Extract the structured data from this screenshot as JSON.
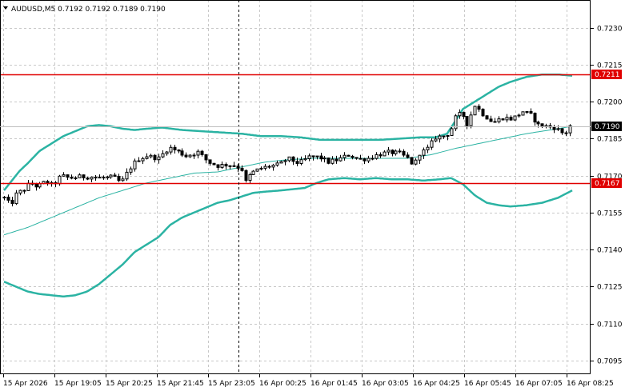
{
  "header": {
    "title": "AUDUSD,M5  0.7192 0.7192 0.7189 0.7190",
    "menu_icon": "triangle-down-icon"
  },
  "colors": {
    "background": "#ffffff",
    "grid": "#c8c8c8",
    "candle": "#000000",
    "bands": "#2bb3a3",
    "ma": "#2bb3a3",
    "level_line": "#e00000",
    "level_badge": "#e00000",
    "price_badge": "#000000"
  },
  "chart_data": {
    "type": "candlestick",
    "symbol": "AUDUSD",
    "timeframe": "M5",
    "ohlc_header": {
      "open": 0.7192,
      "high": 0.7192,
      "low": 0.7189,
      "close": 0.719
    },
    "current_price": 0.719,
    "current_price_label": "0.7190",
    "ylim": [
      0.7087,
      0.7238
    ],
    "grid": true,
    "y_ticks": [
      0.723,
      0.7215,
      0.72,
      0.7185,
      0.717,
      0.7155,
      0.714,
      0.7125,
      0.711,
      0.7095
    ],
    "y_tick_labels": [
      "0.7230",
      "0.7215",
      "0.7200",
      "0.7185",
      "0.7170",
      "0.7155",
      "0.7140",
      "0.7125",
      "0.7110",
      "0.7095"
    ],
    "x_tick_labels": [
      "15 Apr 2026",
      "15 Apr 19:05",
      "15 Apr 20:25",
      "15 Apr 21:45",
      "15 Apr 23:05",
      "16 Apr 00:25",
      "16 Apr 01:45",
      "16 Apr 03:05",
      "16 Apr 04:25",
      "16 Apr 05:45",
      "16 Apr 07:05",
      "16 Apr 08:25"
    ],
    "horizontal_levels": [
      {
        "value": 0.7211,
        "label": "0.7211"
      },
      {
        "value": 0.7167,
        "label": "0.7167"
      }
    ],
    "vertical_marker_index": 296,
    "upper_band": [
      [
        0,
        0.7164
      ],
      [
        10,
        0.7168
      ],
      [
        20,
        0.7172
      ],
      [
        30,
        0.7175
      ],
      [
        45,
        0.718
      ],
      [
        60,
        0.7183
      ],
      [
        75,
        0.7186
      ],
      [
        90,
        0.7188
      ],
      [
        105,
        0.719
      ],
      [
        120,
        0.71905
      ],
      [
        135,
        0.719
      ],
      [
        150,
        0.7189
      ],
      [
        165,
        0.71885
      ],
      [
        180,
        0.7189
      ],
      [
        200,
        0.71895
      ],
      [
        225,
        0.71885
      ],
      [
        250,
        0.7188
      ],
      [
        275,
        0.71875
      ],
      [
        300,
        0.7187
      ],
      [
        325,
        0.7186
      ],
      [
        350,
        0.7186
      ],
      [
        375,
        0.71855
      ],
      [
        400,
        0.71845
      ],
      [
        425,
        0.71845
      ],
      [
        450,
        0.71845
      ],
      [
        475,
        0.71845
      ],
      [
        500,
        0.7185
      ],
      [
        525,
        0.71855
      ],
      [
        545,
        0.71855
      ],
      [
        560,
        0.7187
      ],
      [
        570,
        0.7192
      ],
      [
        580,
        0.7197
      ],
      [
        595,
        0.72
      ],
      [
        610,
        0.7203
      ],
      [
        625,
        0.7206
      ],
      [
        640,
        0.7208
      ],
      [
        660,
        0.721
      ],
      [
        680,
        0.7211
      ],
      [
        700,
        0.7211
      ],
      [
        718,
        0.72105
      ]
    ],
    "lower_band": [
      [
        0,
        0.7127
      ],
      [
        15,
        0.7125
      ],
      [
        30,
        0.7123
      ],
      [
        45,
        0.7122
      ],
      [
        60,
        0.71215
      ],
      [
        75,
        0.7121
      ],
      [
        90,
        0.71215
      ],
      [
        105,
        0.7123
      ],
      [
        120,
        0.7126
      ],
      [
        135,
        0.713
      ],
      [
        150,
        0.7134
      ],
      [
        165,
        0.7139
      ],
      [
        180,
        0.7142
      ],
      [
        195,
        0.7145
      ],
      [
        210,
        0.715
      ],
      [
        225,
        0.7153
      ],
      [
        240,
        0.7155
      ],
      [
        255,
        0.7157
      ],
      [
        270,
        0.7159
      ],
      [
        285,
        0.716
      ],
      [
        300,
        0.71615
      ],
      [
        315,
        0.7163
      ],
      [
        330,
        0.71635
      ],
      [
        350,
        0.7164
      ],
      [
        380,
        0.7165
      ],
      [
        395,
        0.7167
      ],
      [
        410,
        0.71685
      ],
      [
        430,
        0.7169
      ],
      [
        450,
        0.71685
      ],
      [
        470,
        0.7169
      ],
      [
        490,
        0.71685
      ],
      [
        510,
        0.71685
      ],
      [
        530,
        0.7168
      ],
      [
        550,
        0.71685
      ],
      [
        565,
        0.7169
      ],
      [
        580,
        0.71665
      ],
      [
        595,
        0.7162
      ],
      [
        610,
        0.7159
      ],
      [
        625,
        0.7158
      ],
      [
        640,
        0.71575
      ],
      [
        660,
        0.7158
      ],
      [
        680,
        0.7159
      ],
      [
        700,
        0.7161
      ],
      [
        718,
        0.7164
      ]
    ],
    "moving_average": [
      [
        0,
        0.7146
      ],
      [
        30,
        0.7149
      ],
      [
        60,
        0.7153
      ],
      [
        90,
        0.7157
      ],
      [
        120,
        0.7161
      ],
      [
        150,
        0.7164
      ],
      [
        180,
        0.7167
      ],
      [
        210,
        0.7169
      ],
      [
        240,
        0.7171
      ],
      [
        270,
        0.71715
      ],
      [
        300,
        0.71735
      ],
      [
        330,
        0.71755
      ],
      [
        360,
        0.71765
      ],
      [
        390,
        0.7177
      ],
      [
        420,
        0.7177
      ],
      [
        450,
        0.7177
      ],
      [
        480,
        0.7177
      ],
      [
        510,
        0.7177
      ],
      [
        540,
        0.71785
      ],
      [
        570,
        0.7181
      ],
      [
        600,
        0.7183
      ],
      [
        630,
        0.7185
      ],
      [
        660,
        0.7187
      ],
      [
        690,
        0.71885
      ],
      [
        718,
        0.719
      ]
    ],
    "price_path": [
      [
        0,
        0.7161
      ],
      [
        8,
        0.7158
      ],
      [
        16,
        0.7163
      ],
      [
        24,
        0.7164
      ],
      [
        32,
        0.7167
      ],
      [
        42,
        0.71655
      ],
      [
        52,
        0.71675
      ],
      [
        62,
        0.7166
      ],
      [
        72,
        0.717
      ],
      [
        82,
        0.7169
      ],
      [
        95,
        0.71695
      ],
      [
        110,
        0.71695
      ],
      [
        125,
        0.7169
      ],
      [
        138,
        0.71695
      ],
      [
        148,
        0.7167
      ],
      [
        158,
        0.71725
      ],
      [
        168,
        0.71765
      ],
      [
        180,
        0.7178
      ],
      [
        195,
        0.7177
      ],
      [
        208,
        0.71815
      ],
      [
        218,
        0.718
      ],
      [
        230,
        0.7178
      ],
      [
        245,
        0.71795
      ],
      [
        258,
        0.71755
      ],
      [
        270,
        0.7174
      ],
      [
        282,
        0.71745
      ],
      [
        292,
        0.7174
      ],
      [
        300,
        0.71725
      ],
      [
        305,
        0.71675
      ],
      [
        312,
        0.7171
      ],
      [
        325,
        0.7173
      ],
      [
        338,
        0.7174
      ],
      [
        348,
        0.71745
      ],
      [
        358,
        0.7177
      ],
      [
        372,
        0.7175
      ],
      [
        385,
        0.71775
      ],
      [
        398,
        0.71775
      ],
      [
        410,
        0.71755
      ],
      [
        422,
        0.71765
      ],
      [
        436,
        0.71785
      ],
      [
        448,
        0.71765
      ],
      [
        460,
        0.7177
      ],
      [
        472,
        0.71785
      ],
      [
        486,
        0.71795
      ],
      [
        500,
        0.7179
      ],
      [
        510,
        0.7177
      ],
      [
        518,
        0.7174
      ],
      [
        524,
        0.7179
      ],
      [
        534,
        0.71805
      ],
      [
        545,
        0.71855
      ],
      [
        555,
        0.7186
      ],
      [
        563,
        0.71875
      ],
      [
        570,
        0.71935
      ],
      [
        578,
        0.71955
      ],
      [
        585,
        0.7191
      ],
      [
        595,
        0.71985
      ],
      [
        605,
        0.7195
      ],
      [
        618,
        0.71915
      ],
      [
        630,
        0.71935
      ],
      [
        642,
        0.7193
      ],
      [
        655,
        0.7196
      ],
      [
        665,
        0.71945
      ],
      [
        675,
        0.71905
      ],
      [
        685,
        0.719
      ],
      [
        695,
        0.71895
      ],
      [
        703,
        0.7188
      ],
      [
        708,
        0.71865
      ],
      [
        714,
        0.719
      ],
      [
        718,
        0.7191
      ]
    ]
  }
}
